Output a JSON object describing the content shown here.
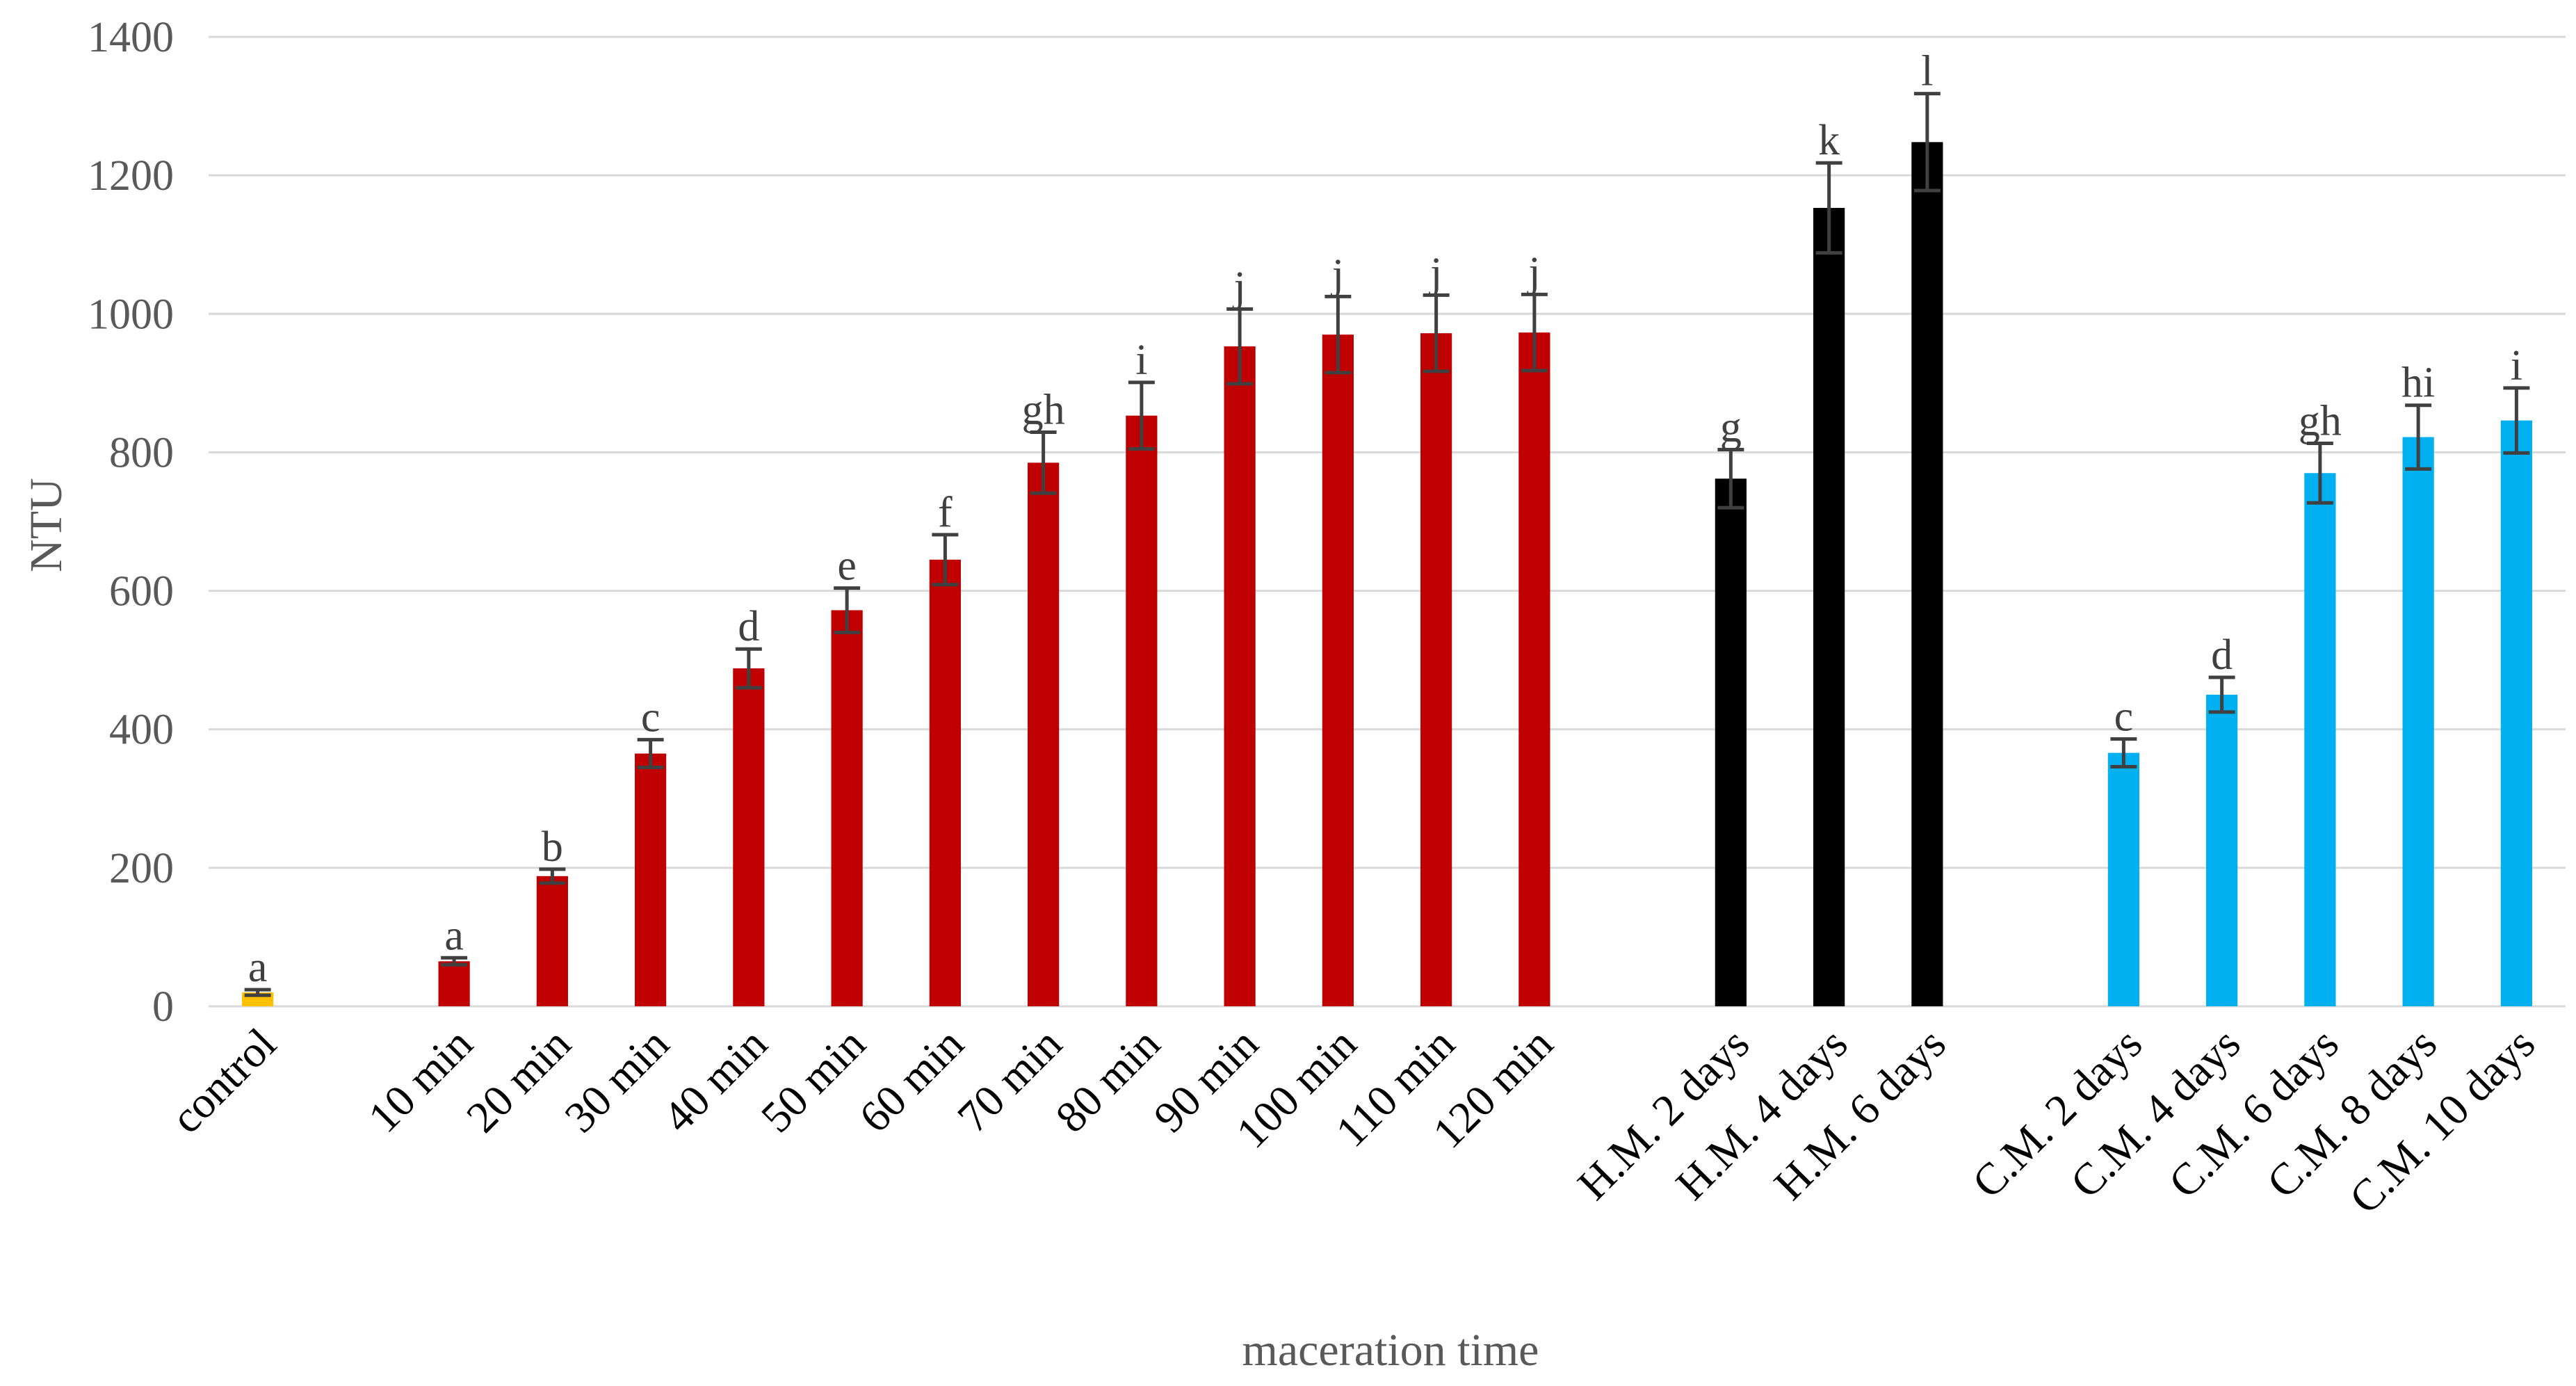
{
  "chart_data": {
    "type": "bar",
    "title": "",
    "xlabel": "maceration time",
    "ylabel": "NTU",
    "ylim": [
      0,
      1400
    ],
    "yticks": [
      0,
      200,
      400,
      600,
      800,
      1000,
      1200,
      1400
    ],
    "grid": true,
    "legend": "none",
    "groups": [
      {
        "color": "#ffc000",
        "bars": [
          {
            "category": "control",
            "value": 20,
            "error": 4,
            "label": "a"
          }
        ]
      },
      {
        "color": "#c00000",
        "bars": [
          {
            "category": "10 min",
            "value": 65,
            "error": 5,
            "label": "a"
          },
          {
            "category": "20 min",
            "value": 188,
            "error": 10,
            "label": "b"
          },
          {
            "category": "30 min",
            "value": 365,
            "error": 20,
            "label": "c"
          },
          {
            "category": "40 min",
            "value": 488,
            "error": 28,
            "label": "d"
          },
          {
            "category": "50 min",
            "value": 572,
            "error": 32,
            "label": "e"
          },
          {
            "category": "60 min",
            "value": 645,
            "error": 36,
            "label": "f"
          },
          {
            "category": "70 min",
            "value": 785,
            "error": 44,
            "label": "gh"
          },
          {
            "category": "80 min",
            "value": 853,
            "error": 48,
            "label": "i"
          },
          {
            "category": "90 min",
            "value": 953,
            "error": 54,
            "label": "j"
          },
          {
            "category": "100 min",
            "value": 970,
            "error": 55,
            "label": "j"
          },
          {
            "category": "110 min",
            "value": 972,
            "error": 55,
            "label": "j"
          },
          {
            "category": "120 min",
            "value": 973,
            "error": 55,
            "label": "j"
          }
        ]
      },
      {
        "color": "#000000",
        "bars": [
          {
            "category": "H.M. 2 days",
            "value": 762,
            "error": 42,
            "label": "g"
          },
          {
            "category": "H.M. 4 days",
            "value": 1153,
            "error": 65,
            "label": "k"
          },
          {
            "category": "H.M. 6 days",
            "value": 1248,
            "error": 70,
            "label": "l"
          }
        ]
      },
      {
        "color": "#00b0f0",
        "bars": [
          {
            "category": "C.M. 2 days",
            "value": 366,
            "error": 20,
            "label": "c"
          },
          {
            "category": "C.M. 4 days",
            "value": 450,
            "error": 25,
            "label": "d"
          },
          {
            "category": "C.M. 6 days",
            "value": 770,
            "error": 43,
            "label": "gh"
          },
          {
            "category": "C.M. 8 days",
            "value": 822,
            "error": 46,
            "label": "hi"
          },
          {
            "category": "C.M. 10 days",
            "value": 846,
            "error": 47,
            "label": "i"
          }
        ]
      }
    ]
  }
}
